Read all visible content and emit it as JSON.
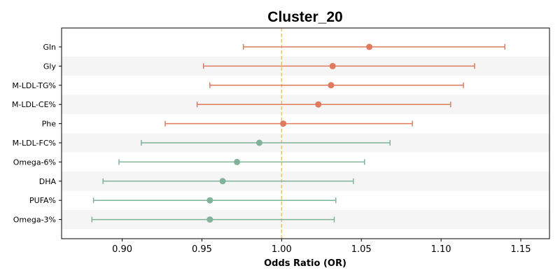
{
  "chart_data": {
    "type": "forest",
    "title": "Cluster_20",
    "xlabel": "Odds Ratio (OR)",
    "ylabel": "",
    "xlim": [
      0.862,
      1.168
    ],
    "xticks": [
      0.9,
      0.95,
      1.0,
      1.05,
      1.1,
      1.15
    ],
    "xtick_labels": [
      "0.90",
      "0.95",
      "1.00",
      "1.05",
      "1.10",
      "1.15"
    ],
    "reference_line": 1.0,
    "reference_color": "#f0c070",
    "grid": false,
    "row_stripes": true,
    "colors": {
      "positive": "#e07a5f",
      "negative": "#81b29a"
    },
    "rows": [
      {
        "label": "Gln",
        "or": 1.055,
        "ci_low": 0.976,
        "ci_high": 1.14,
        "group": "positive"
      },
      {
        "label": "Gly",
        "or": 1.032,
        "ci_low": 0.951,
        "ci_high": 1.121,
        "group": "positive"
      },
      {
        "label": "M-LDL-TG%",
        "or": 1.031,
        "ci_low": 0.955,
        "ci_high": 1.114,
        "group": "positive"
      },
      {
        "label": "M-LDL-CE%",
        "or": 1.023,
        "ci_low": 0.947,
        "ci_high": 1.106,
        "group": "positive"
      },
      {
        "label": "Phe",
        "or": 1.001,
        "ci_low": 0.927,
        "ci_high": 1.082,
        "group": "positive"
      },
      {
        "label": "M-LDL-FC%",
        "or": 0.986,
        "ci_low": 0.912,
        "ci_high": 1.068,
        "group": "negative"
      },
      {
        "label": "Omega-6%",
        "or": 0.972,
        "ci_low": 0.898,
        "ci_high": 1.052,
        "group": "negative"
      },
      {
        "label": "DHA",
        "or": 0.963,
        "ci_low": 0.888,
        "ci_high": 1.045,
        "group": "negative"
      },
      {
        "label": "PUFA%",
        "or": 0.955,
        "ci_low": 0.882,
        "ci_high": 1.034,
        "group": "negative"
      },
      {
        "label": "Omega-3%",
        "or": 0.955,
        "ci_low": 0.881,
        "ci_high": 1.033,
        "group": "negative"
      }
    ]
  }
}
